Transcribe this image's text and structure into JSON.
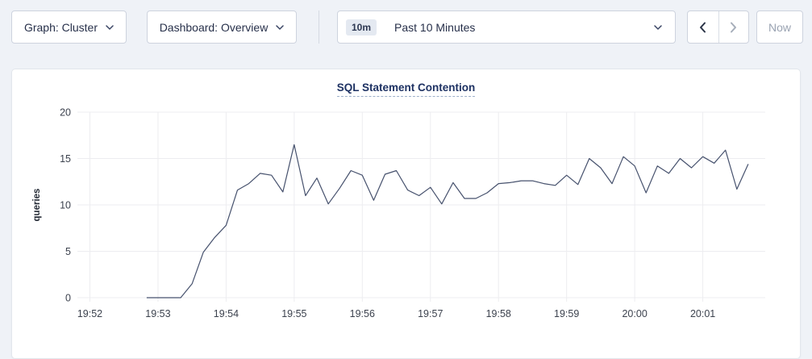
{
  "toolbar": {
    "graph_dropdown": {
      "label": "Graph: Cluster"
    },
    "dashboard_dropdown": {
      "label": "Dashboard: Overview"
    },
    "time_picker": {
      "badge": "10m",
      "label": "Past 10 Minutes"
    },
    "now_button": {
      "label": "Now",
      "disabled": true
    },
    "prev_button": {
      "icon": "chevron-left",
      "disabled": false
    },
    "next_button": {
      "icon": "chevron-right",
      "disabled": true
    }
  },
  "chart_data": {
    "type": "line",
    "title": "SQL Statement Contention",
    "xlabel": "",
    "ylabel": "queries",
    "ylim": [
      0,
      20
    ],
    "yticks": [
      0,
      5,
      10,
      15,
      20
    ],
    "xticks": [
      "19:52",
      "19:53",
      "19:54",
      "19:55",
      "19:56",
      "19:57",
      "19:58",
      "19:59",
      "20:00",
      "20:01"
    ],
    "x_domain": [
      "19:51:49",
      "20:01:55"
    ],
    "grid": true,
    "legend_position": "none",
    "series": [
      {
        "name": "queries",
        "start_time": "19:52:50",
        "interval_seconds": 10,
        "values": [
          0,
          0,
          0,
          0,
          1.5,
          4.9,
          6.5,
          7.8,
          11.6,
          12.3,
          13.4,
          13.2,
          11.4,
          16.5,
          11.0,
          12.9,
          10.1,
          11.8,
          13.7,
          13.2,
          10.5,
          13.3,
          13.7,
          11.6,
          11.0,
          11.9,
          10.1,
          12.4,
          10.7,
          10.7,
          11.3,
          12.3,
          12.4,
          12.6,
          12.6,
          12.3,
          12.1,
          13.2,
          12.2,
          15.0,
          14.0,
          12.3,
          15.2,
          14.2,
          11.3,
          14.2,
          13.4,
          15.0,
          14.0,
          15.2,
          14.5,
          15.9,
          11.7,
          14.4
        ]
      }
    ],
    "colors": {
      "line": "#46516d",
      "grid": "#ededf0",
      "title": "#1e3263",
      "tick_text": "#3c424e"
    }
  }
}
